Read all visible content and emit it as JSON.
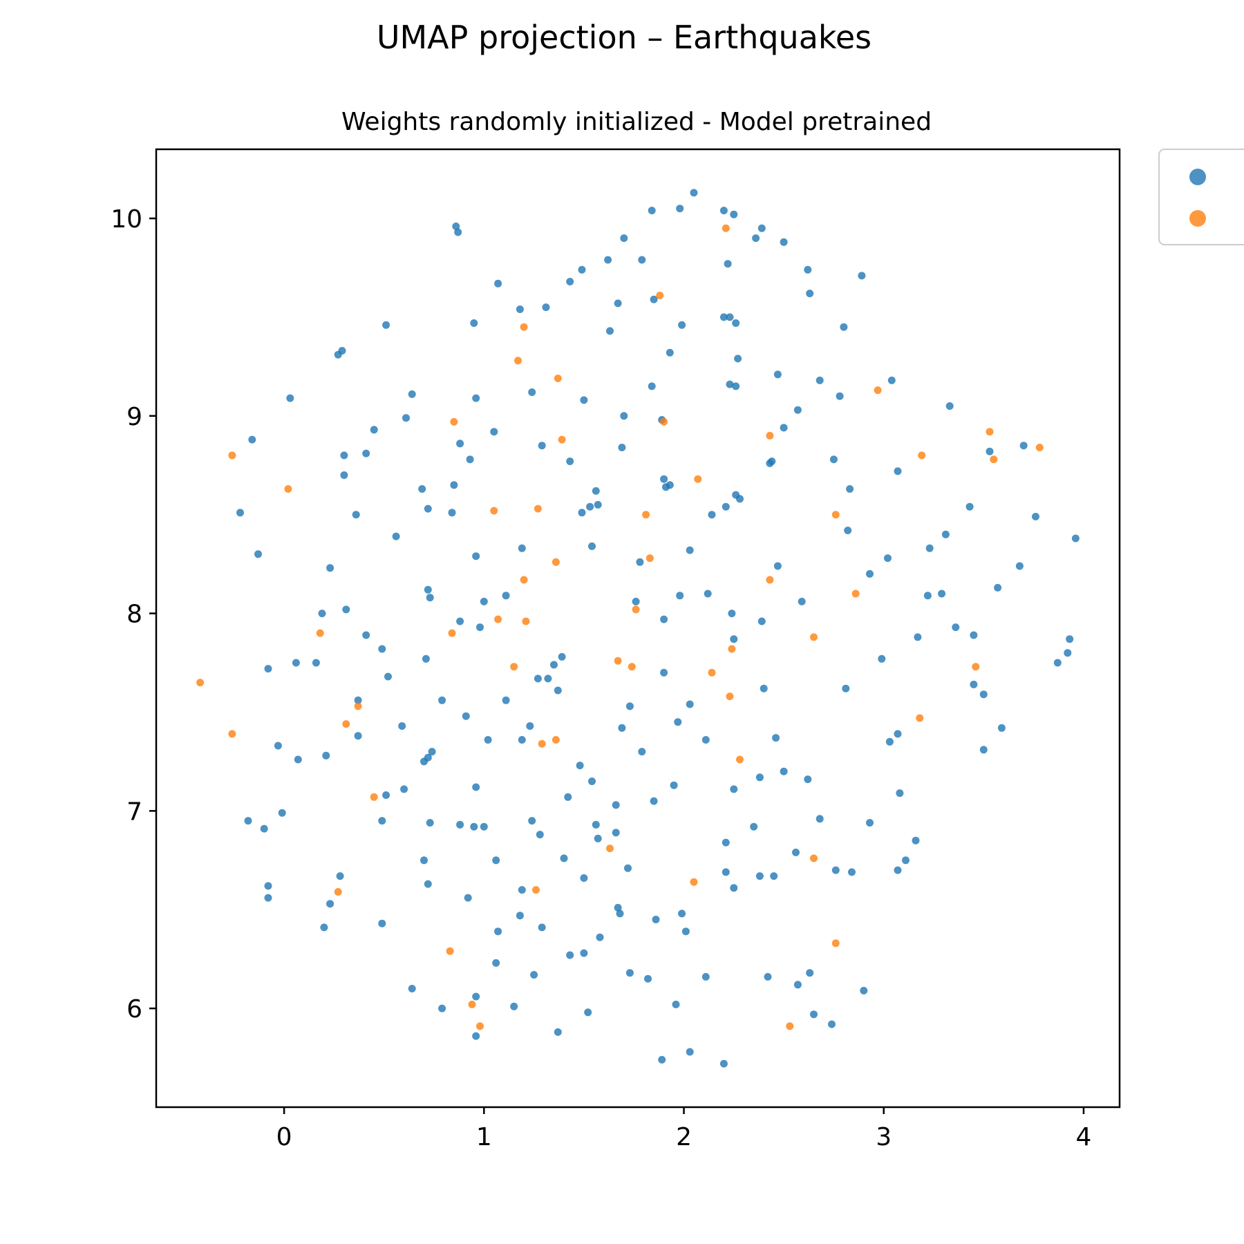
{
  "chart_data": {
    "type": "scatter",
    "title": "UMAP projection – Earthquakes",
    "subtitle": "Weights randomly initialized - Model pretrained",
    "xlim": [
      -0.64,
      4.18
    ],
    "ylim": [
      5.5,
      10.35
    ],
    "xticks": [
      0,
      1,
      2,
      3,
      4
    ],
    "yticks": [
      6,
      7,
      8,
      9,
      10
    ],
    "grid": false,
    "legend": {
      "placement": "outside-top-right",
      "entries": [
        "",
        ""
      ]
    },
    "series": [
      {
        "color": "#1f77b4",
        "points": [
          [
            0.86,
            9.96
          ],
          [
            0.87,
            9.93
          ],
          [
            1.84,
            10.04
          ],
          [
            1.98,
            10.05
          ],
          [
            2.05,
            10.13
          ],
          [
            2.2,
            10.04
          ],
          [
            2.25,
            10.02
          ],
          [
            1.7,
            9.9
          ],
          [
            2.36,
            9.9
          ],
          [
            2.39,
            9.95
          ],
          [
            2.5,
            9.88
          ],
          [
            1.62,
            9.79
          ],
          [
            1.79,
            9.79
          ],
          [
            1.49,
            9.74
          ],
          [
            2.22,
            9.77
          ],
          [
            2.62,
            9.74
          ],
          [
            2.89,
            9.71
          ],
          [
            1.43,
            9.68
          ],
          [
            1.07,
            9.67
          ],
          [
            1.85,
            9.59
          ],
          [
            1.67,
            9.57
          ],
          [
            2.63,
            9.62
          ],
          [
            1.18,
            9.54
          ],
          [
            1.31,
            9.55
          ],
          [
            0.51,
            9.46
          ],
          [
            0.95,
            9.47
          ],
          [
            1.63,
            9.43
          ],
          [
            1.99,
            9.46
          ],
          [
            2.2,
            9.5
          ],
          [
            2.23,
            9.5
          ],
          [
            2.26,
            9.47
          ],
          [
            2.8,
            9.45
          ],
          [
            0.27,
            9.31
          ],
          [
            0.29,
            9.33
          ],
          [
            1.93,
            9.32
          ],
          [
            2.27,
            9.29
          ],
          [
            0.03,
            9.09
          ],
          [
            0.64,
            9.11
          ],
          [
            0.96,
            9.09
          ],
          [
            1.24,
            9.12
          ],
          [
            1.5,
            9.08
          ],
          [
            1.84,
            9.15
          ],
          [
            2.23,
            9.16
          ],
          [
            2.26,
            9.15
          ],
          [
            2.47,
            9.21
          ],
          [
            2.68,
            9.18
          ],
          [
            2.78,
            9.1
          ],
          [
            3.04,
            9.18
          ],
          [
            3.33,
            9.05
          ],
          [
            -0.16,
            8.88
          ],
          [
            0.45,
            8.93
          ],
          [
            0.61,
            8.99
          ],
          [
            0.88,
            8.86
          ],
          [
            1.05,
            8.92
          ],
          [
            1.29,
            8.85
          ],
          [
            1.7,
            9.0
          ],
          [
            1.89,
            8.98
          ],
          [
            1.69,
            8.84
          ],
          [
            2.5,
            8.94
          ],
          [
            2.57,
            9.03
          ],
          [
            0.3,
            8.8
          ],
          [
            0.41,
            8.81
          ],
          [
            0.93,
            8.78
          ],
          [
            1.43,
            8.77
          ],
          [
            2.43,
            8.76
          ],
          [
            2.44,
            8.77
          ],
          [
            2.75,
            8.78
          ],
          [
            3.07,
            8.72
          ],
          [
            3.53,
            8.82
          ],
          [
            3.7,
            8.85
          ],
          [
            0.3,
            8.7
          ],
          [
            0.69,
            8.63
          ],
          [
            0.85,
            8.65
          ],
          [
            1.56,
            8.62
          ],
          [
            1.9,
            8.68
          ],
          [
            1.91,
            8.64
          ],
          [
            1.93,
            8.65
          ],
          [
            2.26,
            8.6
          ],
          [
            2.28,
            8.58
          ],
          [
            2.83,
            8.63
          ],
          [
            -0.22,
            8.51
          ],
          [
            0.36,
            8.5
          ],
          [
            0.72,
            8.53
          ],
          [
            0.84,
            8.51
          ],
          [
            1.49,
            8.51
          ],
          [
            1.53,
            8.54
          ],
          [
            1.57,
            8.55
          ],
          [
            2.14,
            8.5
          ],
          [
            2.21,
            8.54
          ],
          [
            3.43,
            8.54
          ],
          [
            3.76,
            8.49
          ],
          [
            -0.13,
            8.3
          ],
          [
            0.56,
            8.39
          ],
          [
            0.96,
            8.29
          ],
          [
            1.19,
            8.33
          ],
          [
            1.54,
            8.34
          ],
          [
            2.03,
            8.32
          ],
          [
            2.82,
            8.42
          ],
          [
            3.02,
            8.28
          ],
          [
            3.23,
            8.33
          ],
          [
            3.31,
            8.4
          ],
          [
            3.96,
            8.38
          ],
          [
            0.23,
            8.23
          ],
          [
            0.72,
            8.12
          ],
          [
            0.73,
            8.08
          ],
          [
            1.0,
            8.06
          ],
          [
            1.11,
            8.09
          ],
          [
            1.78,
            8.26
          ],
          [
            2.47,
            8.24
          ],
          [
            2.93,
            8.2
          ],
          [
            1.76,
            8.06
          ],
          [
            1.98,
            8.09
          ],
          [
            2.12,
            8.1
          ],
          [
            2.59,
            8.06
          ],
          [
            3.22,
            8.09
          ],
          [
            3.29,
            8.1
          ],
          [
            3.68,
            8.24
          ],
          [
            3.57,
            8.13
          ],
          [
            0.19,
            8.0
          ],
          [
            0.31,
            8.02
          ],
          [
            0.88,
            7.96
          ],
          [
            0.98,
            7.93
          ],
          [
            1.9,
            7.97
          ],
          [
            2.24,
            8.0
          ],
          [
            2.39,
            7.96
          ],
          [
            0.41,
            7.89
          ],
          [
            0.49,
            7.82
          ],
          [
            -0.08,
            7.72
          ],
          [
            0.06,
            7.75
          ],
          [
            0.16,
            7.75
          ],
          [
            0.71,
            7.77
          ],
          [
            2.25,
            7.87
          ],
          [
            3.17,
            7.88
          ],
          [
            3.36,
            7.93
          ],
          [
            3.45,
            7.89
          ],
          [
            3.93,
            7.87
          ],
          [
            2.99,
            7.77
          ],
          [
            3.87,
            7.75
          ],
          [
            3.92,
            7.8
          ],
          [
            0.52,
            7.68
          ],
          [
            1.35,
            7.74
          ],
          [
            1.39,
            7.78
          ],
          [
            1.27,
            7.67
          ],
          [
            1.32,
            7.67
          ],
          [
            1.9,
            7.7
          ],
          [
            2.81,
            7.62
          ],
          [
            3.45,
            7.64
          ],
          [
            0.37,
            7.56
          ],
          [
            0.79,
            7.56
          ],
          [
            1.11,
            7.56
          ],
          [
            1.37,
            7.61
          ],
          [
            1.73,
            7.53
          ],
          [
            2.03,
            7.54
          ],
          [
            2.4,
            7.62
          ],
          [
            3.5,
            7.59
          ],
          [
            0.91,
            7.48
          ],
          [
            0.59,
            7.43
          ],
          [
            1.23,
            7.43
          ],
          [
            1.69,
            7.42
          ],
          [
            1.97,
            7.45
          ],
          [
            0.37,
            7.38
          ],
          [
            -0.03,
            7.33
          ],
          [
            1.02,
            7.36
          ],
          [
            1.19,
            7.36
          ],
          [
            2.11,
            7.36
          ],
          [
            2.46,
            7.37
          ],
          [
            3.03,
            7.35
          ],
          [
            3.07,
            7.39
          ],
          [
            3.59,
            7.42
          ],
          [
            0.07,
            7.26
          ],
          [
            0.21,
            7.28
          ],
          [
            0.7,
            7.25
          ],
          [
            0.72,
            7.27
          ],
          [
            0.74,
            7.3
          ],
          [
            1.79,
            7.3
          ],
          [
            3.5,
            7.31
          ],
          [
            0.6,
            7.11
          ],
          [
            0.96,
            7.12
          ],
          [
            1.48,
            7.23
          ],
          [
            1.54,
            7.15
          ],
          [
            1.95,
            7.13
          ],
          [
            2.25,
            7.11
          ],
          [
            2.38,
            7.17
          ],
          [
            2.5,
            7.2
          ],
          [
            2.62,
            7.16
          ],
          [
            3.08,
            7.09
          ],
          [
            0.51,
            7.08
          ],
          [
            1.42,
            7.07
          ],
          [
            1.85,
            7.05
          ],
          [
            1.66,
            7.03
          ],
          [
            -0.18,
            6.95
          ],
          [
            -0.1,
            6.91
          ],
          [
            -0.01,
            6.99
          ],
          [
            0.49,
            6.95
          ],
          [
            0.73,
            6.94
          ],
          [
            0.88,
            6.93
          ],
          [
            0.95,
            6.92
          ],
          [
            1.0,
            6.92
          ],
          [
            1.24,
            6.95
          ],
          [
            1.28,
            6.88
          ],
          [
            1.56,
            6.93
          ],
          [
            1.57,
            6.86
          ],
          [
            1.66,
            6.89
          ],
          [
            2.21,
            6.84
          ],
          [
            2.35,
            6.92
          ],
          [
            2.68,
            6.96
          ],
          [
            2.93,
            6.94
          ],
          [
            3.16,
            6.85
          ],
          [
            0.7,
            6.75
          ],
          [
            1.06,
            6.75
          ],
          [
            1.4,
            6.76
          ],
          [
            2.56,
            6.79
          ],
          [
            3.11,
            6.75
          ],
          [
            0.28,
            6.67
          ],
          [
            1.5,
            6.66
          ],
          [
            1.72,
            6.71
          ],
          [
            2.21,
            6.69
          ],
          [
            2.38,
            6.67
          ],
          [
            2.45,
            6.67
          ],
          [
            2.76,
            6.7
          ],
          [
            2.84,
            6.69
          ],
          [
            3.07,
            6.7
          ],
          [
            -0.08,
            6.62
          ],
          [
            -0.08,
            6.56
          ],
          [
            0.72,
            6.63
          ],
          [
            1.19,
            6.6
          ],
          [
            2.25,
            6.61
          ],
          [
            0.23,
            6.53
          ],
          [
            0.92,
            6.56
          ],
          [
            1.18,
            6.47
          ],
          [
            1.67,
            6.51
          ],
          [
            1.68,
            6.48
          ],
          [
            1.86,
            6.45
          ],
          [
            1.99,
            6.48
          ],
          [
            0.2,
            6.41
          ],
          [
            0.49,
            6.43
          ],
          [
            1.07,
            6.39
          ],
          [
            1.29,
            6.41
          ],
          [
            1.58,
            6.36
          ],
          [
            2.01,
            6.39
          ],
          [
            1.06,
            6.23
          ],
          [
            1.43,
            6.27
          ],
          [
            1.5,
            6.28
          ],
          [
            1.25,
            6.17
          ],
          [
            1.73,
            6.18
          ],
          [
            1.82,
            6.15
          ],
          [
            2.11,
            6.16
          ],
          [
            2.42,
            6.16
          ],
          [
            2.57,
            6.12
          ],
          [
            2.63,
            6.18
          ],
          [
            2.9,
            6.09
          ],
          [
            0.64,
            6.1
          ],
          [
            0.96,
            6.06
          ],
          [
            0.79,
            6.0
          ],
          [
            1.15,
            6.01
          ],
          [
            1.52,
            5.98
          ],
          [
            1.96,
            6.02
          ],
          [
            2.65,
            5.97
          ],
          [
            2.74,
            5.92
          ],
          [
            0.96,
            5.86
          ],
          [
            1.37,
            5.88
          ],
          [
            1.89,
            5.74
          ],
          [
            2.03,
            5.78
          ],
          [
            2.2,
            5.72
          ]
        ]
      },
      {
        "color": "#ff7f0e",
        "points": [
          [
            2.21,
            9.95
          ],
          [
            1.88,
            9.61
          ],
          [
            1.2,
            9.45
          ],
          [
            1.17,
            9.28
          ],
          [
            1.37,
            9.19
          ],
          [
            2.97,
            9.13
          ],
          [
            0.85,
            8.97
          ],
          [
            1.9,
            8.97
          ],
          [
            -0.26,
            8.8
          ],
          [
            1.39,
            8.88
          ],
          [
            2.43,
            8.9
          ],
          [
            3.19,
            8.8
          ],
          [
            3.53,
            8.92
          ],
          [
            3.55,
            8.78
          ],
          [
            3.78,
            8.84
          ],
          [
            0.02,
            8.63
          ],
          [
            2.07,
            8.68
          ],
          [
            1.05,
            8.52
          ],
          [
            1.27,
            8.53
          ],
          [
            1.81,
            8.5
          ],
          [
            2.76,
            8.5
          ],
          [
            1.36,
            8.26
          ],
          [
            1.83,
            8.28
          ],
          [
            1.2,
            8.17
          ],
          [
            2.43,
            8.17
          ],
          [
            2.86,
            8.1
          ],
          [
            0.18,
            7.9
          ],
          [
            0.84,
            7.9
          ],
          [
            1.07,
            7.97
          ],
          [
            1.21,
            7.96
          ],
          [
            1.76,
            8.02
          ],
          [
            2.65,
            7.88
          ],
          [
            2.24,
            7.82
          ],
          [
            -0.42,
            7.65
          ],
          [
            1.15,
            7.73
          ],
          [
            1.67,
            7.76
          ],
          [
            1.74,
            7.73
          ],
          [
            2.14,
            7.7
          ],
          [
            3.46,
            7.73
          ],
          [
            0.37,
            7.53
          ],
          [
            2.23,
            7.58
          ],
          [
            3.18,
            7.47
          ],
          [
            -0.26,
            7.39
          ],
          [
            0.31,
            7.44
          ],
          [
            1.29,
            7.34
          ],
          [
            1.36,
            7.36
          ],
          [
            2.28,
            7.26
          ],
          [
            0.45,
            7.07
          ],
          [
            1.63,
            6.81
          ],
          [
            2.65,
            6.76
          ],
          [
            0.27,
            6.59
          ],
          [
            1.26,
            6.6
          ],
          [
            2.05,
            6.64
          ],
          [
            2.76,
            6.33
          ],
          [
            0.83,
            6.29
          ],
          [
            0.94,
            6.02
          ],
          [
            0.98,
            5.91
          ],
          [
            2.53,
            5.91
          ]
        ]
      }
    ]
  }
}
